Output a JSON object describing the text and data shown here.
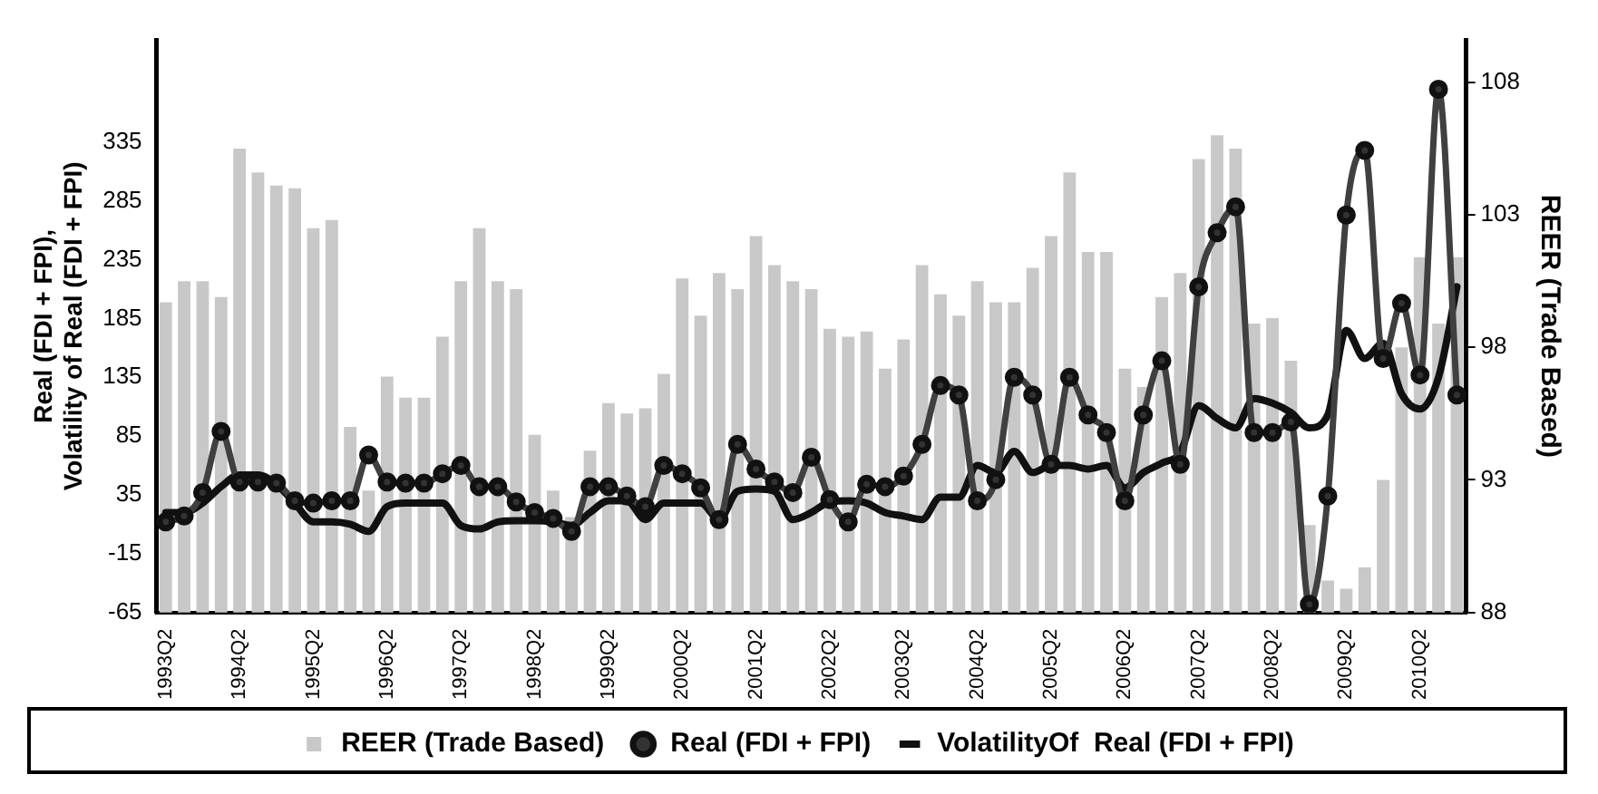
{
  "chart_data": {
    "type": "bar",
    "ylabel": "Real (FDI + FPI), Volatility of Real (FDI + FPI)",
    "y2label": "REER (Trade Based)",
    "legend": "bottom",
    "categories": [
      "1993Q2",
      null,
      null,
      null,
      "1994Q2",
      null,
      null,
      null,
      "1995Q2",
      null,
      null,
      null,
      "1996Q2",
      null,
      null,
      null,
      "1997Q2",
      null,
      null,
      null,
      "1998Q2",
      null,
      null,
      null,
      "1999Q2",
      null,
      null,
      null,
      "2000Q2",
      null,
      null,
      null,
      "2001Q2",
      null,
      null,
      null,
      "2002Q2",
      null,
      null,
      null,
      "2003Q2",
      null,
      null,
      null,
      "2004Q2",
      null,
      null,
      null,
      "2005Q2",
      null,
      null,
      null,
      "2006Q2",
      null,
      null,
      null,
      "2007Q2",
      null,
      null,
      null,
      "2008Q2",
      null,
      null,
      null,
      "2009Q2",
      null,
      null,
      null,
      "2010Q2",
      null,
      null
    ],
    "ylim": [
      -65,
      422
    ],
    "yticks": [
      -65,
      -15,
      35,
      85,
      135,
      185,
      235,
      285,
      335
    ],
    "y2lim": [
      88,
      109.6
    ],
    "y2ticks": [
      88,
      93,
      98,
      103,
      108
    ],
    "series": [
      {
        "name": "REER (Trade Based)",
        "axis": "y2",
        "color": "#c8c8c8",
        "values": [
          99.7,
          100.5,
          100.5,
          99.9,
          105.5,
          104.6,
          104.1,
          104.0,
          102.5,
          102.8,
          95.0,
          92.6,
          96.9,
          96.1,
          96.1,
          98.4,
          100.5,
          102.5,
          100.5,
          100.2,
          94.7,
          92.6,
          91.6,
          94.1,
          95.9,
          95.5,
          95.7,
          97.0,
          100.6,
          99.2,
          100.8,
          100.2,
          102.2,
          101.1,
          100.5,
          100.2,
          98.7,
          98.4,
          98.6,
          97.2,
          98.3,
          101.1,
          100.0,
          99.2,
          100.5,
          99.7,
          99.7,
          101.0,
          102.2,
          104.6,
          101.6,
          101.6,
          97.2,
          96.5,
          99.9,
          100.8,
          105.1,
          106.0,
          105.5,
          98.9,
          99.1,
          97.5,
          91.3,
          89.2,
          88.9,
          89.7,
          93.0,
          98.0,
          101.4,
          98.9,
          101.4
        ]
      },
      {
        "name": "Real (FDI + FPI)",
        "type": "line",
        "axis": "y",
        "color": "#404040",
        "marker": "circle",
        "values": [
          12,
          17,
          37,
          89,
          46,
          46,
          45,
          30,
          28,
          30,
          30,
          69,
          46,
          45,
          45,
          53,
          60,
          42,
          42,
          29,
          20,
          15,
          4,
          42,
          42,
          34,
          25,
          60,
          53,
          41,
          14,
          78,
          57,
          46,
          37,
          67,
          31,
          12,
          44,
          42,
          51,
          78,
          128,
          120,
          30,
          48,
          135,
          120,
          61,
          135,
          103,
          88,
          30,
          103,
          149,
          61,
          212,
          258,
          280,
          88,
          88,
          97,
          -58,
          34,
          273,
          328,
          151,
          198,
          137,
          380,
          120
        ]
      },
      {
        "name": "VolatilityOf  Real (FDI + FPI)",
        "type": "line",
        "axis": "y",
        "color": "#111111",
        "marker": "none",
        "values": [
          20,
          20,
          28,
          42,
          52,
          52,
          44,
          28,
          12,
          12,
          10,
          4,
          25,
          28,
          28,
          28,
          9,
          6,
          12,
          13,
          13,
          12,
          9,
          20,
          30,
          30,
          14,
          28,
          28,
          28,
          14,
          38,
          40,
          38,
          14,
          20,
          29,
          30,
          28,
          20,
          17,
          14,
          33,
          33,
          60,
          54,
          72,
          54,
          60,
          60,
          57,
          60,
          41,
          54,
          62,
          71,
          111,
          100,
          92,
          117,
          113,
          105,
          92,
          103,
          175,
          151,
          164,
          121,
          108,
          135,
          212
        ]
      }
    ]
  }
}
